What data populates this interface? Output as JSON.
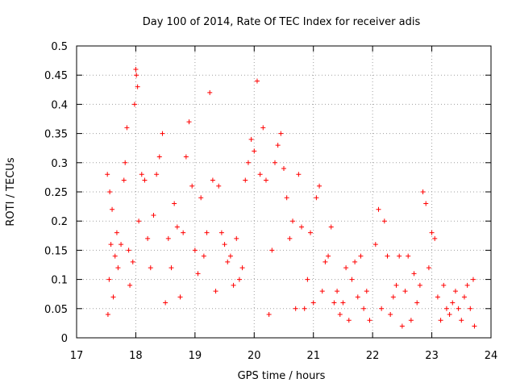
{
  "chart_data": {
    "type": "scatter",
    "title": "Day 100 of 2014, Rate Of TEC Index for receiver adis",
    "xlabel": "GPS time / hours",
    "ylabel": "ROTI / TECUs",
    "xlim": [
      17,
      24
    ],
    "ylim": [
      0,
      0.5
    ],
    "grid": true,
    "x_ticks": [
      "17",
      "18",
      "19",
      "20",
      "21",
      "22",
      "23",
      "24"
    ],
    "y_ticks": [
      "0",
      "0.05",
      "0.1",
      "0.15",
      "0.2",
      "0.25",
      "0.3",
      "0.35",
      "0.4",
      "0.45",
      "0.5"
    ],
    "marker": "+",
    "color": "#ff0000",
    "series": [
      {
        "name": "ROTI",
        "points": [
          [
            17.52,
            0.28
          ],
          [
            17.53,
            0.04
          ],
          [
            17.55,
            0.1
          ],
          [
            17.56,
            0.25
          ],
          [
            17.58,
            0.16
          ],
          [
            17.6,
            0.22
          ],
          [
            17.62,
            0.07
          ],
          [
            17.65,
            0.14
          ],
          [
            17.68,
            0.18
          ],
          [
            17.7,
            0.12
          ],
          [
            17.75,
            0.16
          ],
          [
            17.8,
            0.27
          ],
          [
            17.82,
            0.3
          ],
          [
            17.85,
            0.36
          ],
          [
            17.88,
            0.15
          ],
          [
            17.9,
            0.09
          ],
          [
            17.95,
            0.13
          ],
          [
            17.98,
            0.4
          ],
          [
            18.0,
            0.46
          ],
          [
            18.01,
            0.45
          ],
          [
            18.03,
            0.43
          ],
          [
            18.05,
            0.2
          ],
          [
            18.1,
            0.28
          ],
          [
            18.15,
            0.27
          ],
          [
            18.2,
            0.17
          ],
          [
            18.25,
            0.12
          ],
          [
            18.3,
            0.21
          ],
          [
            18.35,
            0.28
          ],
          [
            18.4,
            0.31
          ],
          [
            18.45,
            0.35
          ],
          [
            18.5,
            0.06
          ],
          [
            18.55,
            0.17
          ],
          [
            18.6,
            0.12
          ],
          [
            18.65,
            0.23
          ],
          [
            18.7,
            0.19
          ],
          [
            18.75,
            0.07
          ],
          [
            18.8,
            0.18
          ],
          [
            18.85,
            0.31
          ],
          [
            18.9,
            0.37
          ],
          [
            18.95,
            0.26
          ],
          [
            19.0,
            0.15
          ],
          [
            19.05,
            0.11
          ],
          [
            19.1,
            0.24
          ],
          [
            19.15,
            0.14
          ],
          [
            19.2,
            0.18
          ],
          [
            19.25,
            0.42
          ],
          [
            19.3,
            0.27
          ],
          [
            19.35,
            0.08
          ],
          [
            19.4,
            0.26
          ],
          [
            19.45,
            0.18
          ],
          [
            19.5,
            0.16
          ],
          [
            19.55,
            0.13
          ],
          [
            19.6,
            0.14
          ],
          [
            19.65,
            0.09
          ],
          [
            19.7,
            0.17
          ],
          [
            19.75,
            0.1
          ],
          [
            19.8,
            0.12
          ],
          [
            19.85,
            0.27
          ],
          [
            19.9,
            0.3
          ],
          [
            19.95,
            0.34
          ],
          [
            20.0,
            0.32
          ],
          [
            20.05,
            0.44
          ],
          [
            20.1,
            0.28
          ],
          [
            20.15,
            0.36
          ],
          [
            20.2,
            0.27
          ],
          [
            20.25,
            0.04
          ],
          [
            20.3,
            0.15
          ],
          [
            20.35,
            0.3
          ],
          [
            20.4,
            0.33
          ],
          [
            20.45,
            0.35
          ],
          [
            20.5,
            0.29
          ],
          [
            20.55,
            0.24
          ],
          [
            20.6,
            0.17
          ],
          [
            20.65,
            0.2
          ],
          [
            20.7,
            0.05
          ],
          [
            20.75,
            0.28
          ],
          [
            20.8,
            0.19
          ],
          [
            20.85,
            0.05
          ],
          [
            20.9,
            0.1
          ],
          [
            20.95,
            0.18
          ],
          [
            21.0,
            0.06
          ],
          [
            21.05,
            0.24
          ],
          [
            21.1,
            0.26
          ],
          [
            21.15,
            0.08
          ],
          [
            21.2,
            0.13
          ],
          [
            21.25,
            0.14
          ],
          [
            21.3,
            0.19
          ],
          [
            21.35,
            0.06
          ],
          [
            21.4,
            0.08
          ],
          [
            21.45,
            0.04
          ],
          [
            21.5,
            0.06
          ],
          [
            21.55,
            0.12
          ],
          [
            21.6,
            0.03
          ],
          [
            21.65,
            0.1
          ],
          [
            21.7,
            0.13
          ],
          [
            21.75,
            0.07
          ],
          [
            21.8,
            0.14
          ],
          [
            21.85,
            0.05
          ],
          [
            21.9,
            0.08
          ],
          [
            21.95,
            0.03
          ],
          [
            22.05,
            0.16
          ],
          [
            22.1,
            0.22
          ],
          [
            22.15,
            0.05
          ],
          [
            22.2,
            0.2
          ],
          [
            22.25,
            0.14
          ],
          [
            22.3,
            0.04
          ],
          [
            22.35,
            0.07
          ],
          [
            22.4,
            0.09
          ],
          [
            22.45,
            0.14
          ],
          [
            22.5,
            0.02
          ],
          [
            22.55,
            0.08
          ],
          [
            22.6,
            0.14
          ],
          [
            22.65,
            0.03
          ],
          [
            22.7,
            0.11
          ],
          [
            22.75,
            0.06
          ],
          [
            22.8,
            0.09
          ],
          [
            22.85,
            0.25
          ],
          [
            22.9,
            0.23
          ],
          [
            22.95,
            0.12
          ],
          [
            23.0,
            0.18
          ],
          [
            23.05,
            0.17
          ],
          [
            23.1,
            0.07
          ],
          [
            23.15,
            0.03
          ],
          [
            23.2,
            0.09
          ],
          [
            23.25,
            0.05
          ],
          [
            23.3,
            0.04
          ],
          [
            23.35,
            0.06
          ],
          [
            23.4,
            0.08
          ],
          [
            23.45,
            0.05
          ],
          [
            23.5,
            0.03
          ],
          [
            23.55,
            0.07
          ],
          [
            23.6,
            0.09
          ],
          [
            23.65,
            0.05
          ],
          [
            23.7,
            0.1
          ],
          [
            23.72,
            0.02
          ]
        ]
      }
    ]
  }
}
